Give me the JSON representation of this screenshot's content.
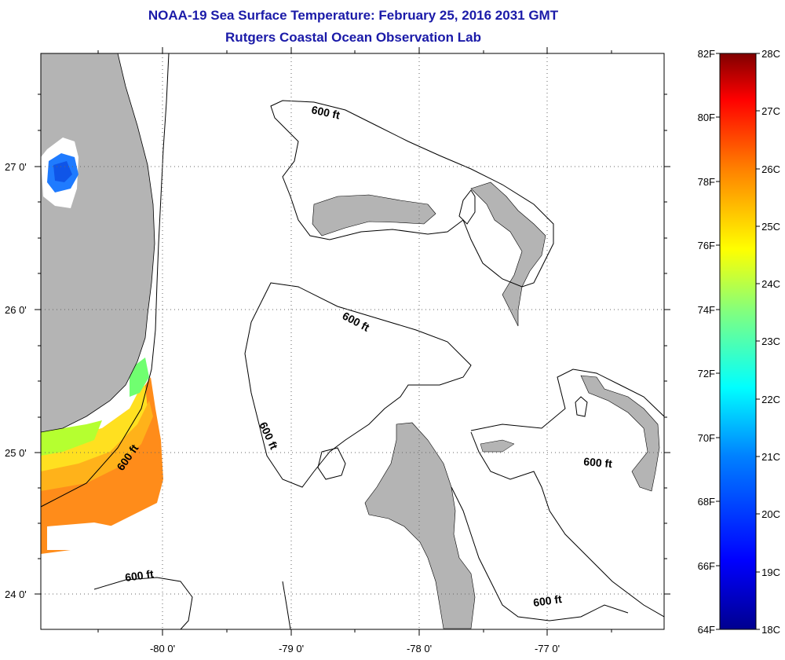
{
  "header": {
    "title": "NOAA-19 Sea Surface Temperature:  February 25, 2016 2031 GMT",
    "subtitle": "Rutgers Coastal Ocean Observation Lab"
  },
  "map": {
    "lat_labels": [
      "27 0'",
      "26 0'",
      "25 0'",
      "24 0'"
    ],
    "lon_labels": [
      "-80 0'",
      "-79 0'",
      "-78 0'",
      "-77 0'"
    ],
    "contour_labels": [
      "600 ft",
      "600 ft",
      "600 ft",
      "600 ft",
      "600 ft",
      "600 ft",
      "600 ft"
    ],
    "colors": {
      "land": "#b4b4b4",
      "water_no_data": "#ffffff",
      "cloud": "#ffffff"
    }
  },
  "colorbar": {
    "fahrenheit_labels": [
      "82F",
      "80F",
      "78F",
      "76F",
      "74F",
      "72F",
      "70F",
      "68F",
      "66F",
      "64F"
    ],
    "celsius_labels": [
      "28C",
      "27C",
      "26C",
      "25C",
      "24C",
      "23C",
      "22C",
      "21C",
      "20C",
      "19C",
      "18C"
    ],
    "gradient_stops": [
      "#00008f",
      "#0000ff",
      "#0080ff",
      "#00ffff",
      "#80ff80",
      "#ffff00",
      "#ff8000",
      "#ff0000",
      "#800000"
    ]
  }
}
